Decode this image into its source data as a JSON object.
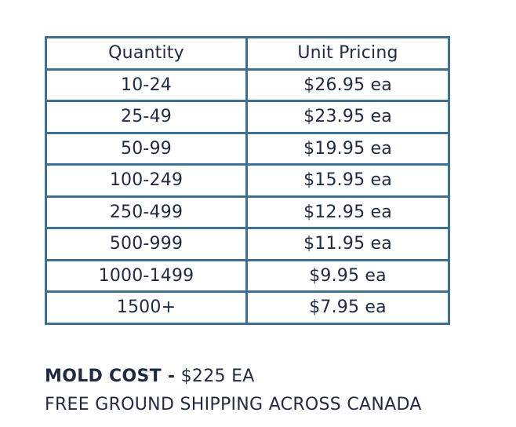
{
  "table": {
    "headers": {
      "quantity": "Quantity",
      "unit_pricing": "Unit Pricing"
    },
    "rows": [
      {
        "quantity": "10-24",
        "price": "$26.95 ea"
      },
      {
        "quantity": "25-49",
        "price": "$23.95 ea"
      },
      {
        "quantity": "50-99",
        "price": "$19.95 ea"
      },
      {
        "quantity": "100-249",
        "price": "$15.95 ea"
      },
      {
        "quantity": "250-499",
        "price": "$12.95 ea"
      },
      {
        "quantity": "500-999",
        "price": "$11.95 ea"
      },
      {
        "quantity": "1000-1499",
        "price": "$9.95 ea"
      },
      {
        "quantity": "1500+",
        "price": "$7.95 ea"
      }
    ]
  },
  "footer": {
    "mold_cost_label": "MOLD COST -",
    "mold_cost_value": "$225 EA",
    "shipping_text": "FREE GROUND SHIPPING ACROSS CANADA"
  },
  "colors": {
    "border": "#3f6f93",
    "text": "#1f2a44"
  }
}
